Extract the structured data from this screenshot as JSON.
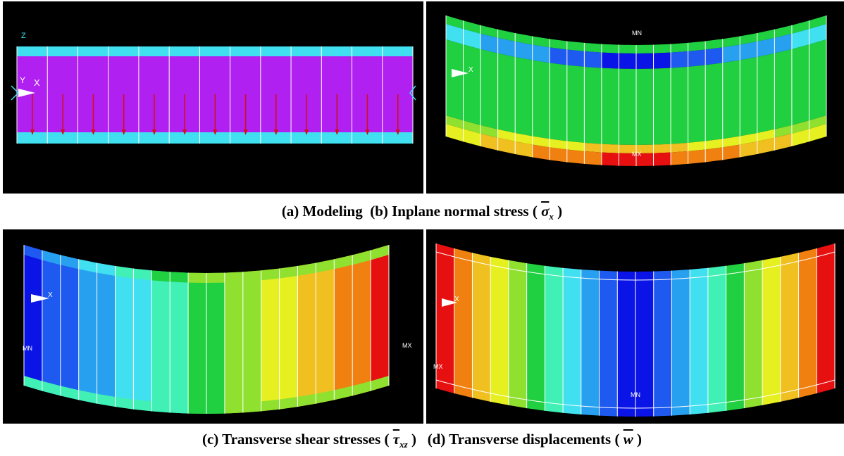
{
  "captions": {
    "a": "(a) Modeling",
    "b_prefix": "(b) Inplane normal stress (",
    "b_symbol": "σ",
    "b_sub": "x",
    "b_suffix": ")",
    "c_prefix": "(c) Transverse shear stresses (",
    "c_symbol": "τ",
    "c_sub": "xz",
    "c_suffix": ")",
    "d_prefix": "(d) Transverse displacements (",
    "d_symbol": "w",
    "d_suffix": ")"
  },
  "panels": {
    "a": {
      "axis_label": "X",
      "axis_label_y": "Y",
      "axis_label_z": "Z"
    },
    "b": {
      "min_label": "MN",
      "max_label": "MX",
      "axis_label": "X"
    },
    "c": {
      "min_label": "MN",
      "max_label": "MX",
      "axis_label": "X"
    },
    "d": {
      "min_label": "MN",
      "max_label": "MX",
      "axis_label": "X"
    }
  },
  "colors": {
    "background": "#000000",
    "beam_core": "#b020f0",
    "beam_face": "#40e0f0",
    "load_arrow": "#d01010",
    "mesh_line": "#ffffff",
    "contour": [
      "#0a14e6",
      "#1e5af0",
      "#28a0f0",
      "#40e0f0",
      "#40f0b4",
      "#20d040",
      "#90e030",
      "#e6f020",
      "#f0c020",
      "#f08010",
      "#e61010"
    ]
  }
}
